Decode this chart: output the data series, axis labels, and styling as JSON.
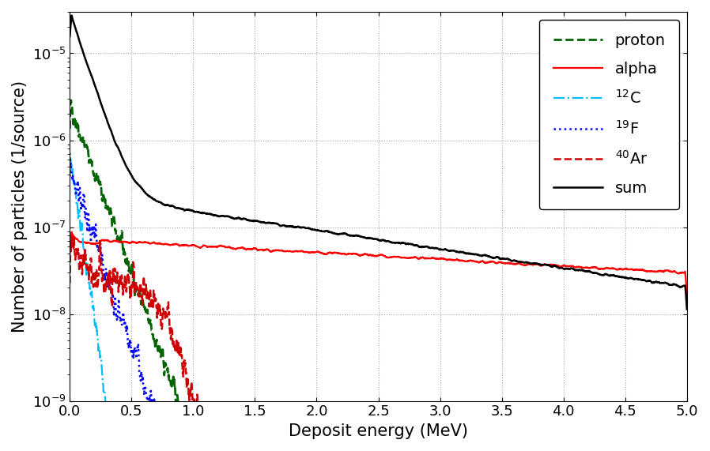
{
  "xlabel": "Deposit energy (MeV)",
  "ylabel": "Number of particles (1/source)",
  "xlim": [
    0,
    5
  ],
  "ylim": [
    1e-09,
    3e-05
  ],
  "legend_labels": [
    "proton",
    "alpha",
    "$^{12}$C",
    "$^{19}$F",
    "$^{40}$Ar",
    "sum"
  ],
  "legend_colors": [
    "#006400",
    "#ff0000",
    "#00bfff",
    "#0000ff",
    "#cc0000",
    "#000000"
  ],
  "legend_linestyles": [
    "dashed",
    "solid",
    "dashdot",
    "dotted",
    "dashed",
    "solid"
  ],
  "legend_linewidths": [
    2.0,
    1.6,
    1.6,
    1.8,
    1.8,
    1.8
  ],
  "legend_fontsize": 14,
  "axis_fontsize": 15,
  "tick_fontsize": 13,
  "background_color": "#ffffff"
}
